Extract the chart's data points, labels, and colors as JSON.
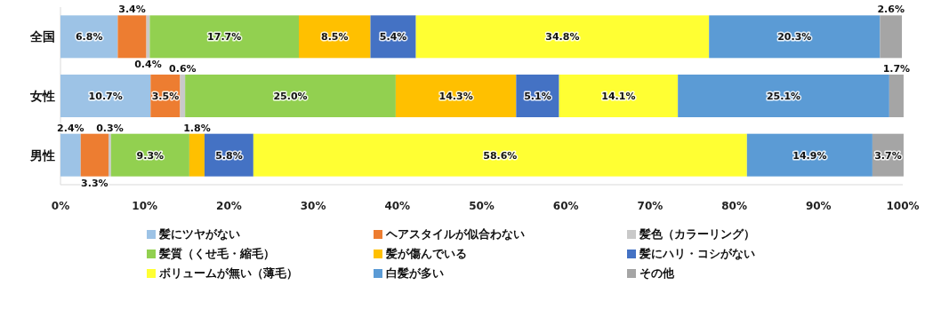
{
  "chart_data": {
    "type": "bar",
    "orientation": "horizontal",
    "stacked": true,
    "legend": "bottom",
    "categories": [
      "全国",
      "女性",
      "男性"
    ],
    "xlim": [
      0,
      100
    ],
    "xticks": [
      {
        "value": 0,
        "label": "0%"
      },
      {
        "value": 10,
        "label": "10%"
      },
      {
        "value": 20,
        "label": "20%"
      },
      {
        "value": 30,
        "label": "30%"
      },
      {
        "value": 40,
        "label": "40%"
      },
      {
        "value": 50,
        "label": "50%"
      },
      {
        "value": 60,
        "label": "60%"
      },
      {
        "value": 70,
        "label": "70%"
      },
      {
        "value": 80,
        "label": "80%"
      },
      {
        "value": 90,
        "label": "90%"
      },
      {
        "value": 100,
        "label": "100%"
      }
    ],
    "series": [
      {
        "name": "髪にツヤがない",
        "color": "#9dc3e6",
        "values": [
          6.8,
          10.7,
          2.4
        ],
        "value_labels": [
          "6.8%",
          "10.7%",
          "2.4%"
        ]
      },
      {
        "name": "ヘアスタイルが似合わない",
        "color": "#ed7d31",
        "values": [
          3.4,
          3.5,
          3.3
        ],
        "value_labels": [
          "3.4%",
          "3.5%",
          "3.3%"
        ]
      },
      {
        "name": "髪色（カラーリング）",
        "color": "#c9c9c9",
        "values": [
          0.4,
          0.6,
          0.3
        ],
        "value_labels": [
          "0.4%",
          "0.6%",
          "0.3%"
        ]
      },
      {
        "name": "髪質（くせ毛・縮毛）",
        "color": "#92d050",
        "values": [
          17.7,
          25.0,
          9.3
        ],
        "value_labels": [
          "17.7%",
          "25.0%",
          "9.3%"
        ]
      },
      {
        "name": "髪が傷んでいる",
        "color": "#ffc000",
        "values": [
          8.5,
          14.3,
          1.8
        ],
        "value_labels": [
          "8.5%",
          "14.3%",
          "1.8%"
        ]
      },
      {
        "name": "髪にハリ・コシがない",
        "color": "#4472c4",
        "values": [
          5.4,
          5.1,
          5.8
        ],
        "value_labels": [
          "5.4%",
          "5.1%",
          "5.8%"
        ]
      },
      {
        "name": "ボリュームが無い（薄毛）",
        "color": "#ffff33",
        "values": [
          34.8,
          14.1,
          58.6
        ],
        "value_labels": [
          "34.8%",
          "14.1%",
          "58.6%"
        ]
      },
      {
        "name": "白髪が多い",
        "color": "#5b9bd5",
        "values": [
          20.3,
          25.1,
          14.9
        ],
        "value_labels": [
          "20.3%",
          "25.1%",
          "14.9%"
        ]
      },
      {
        "name": "その他",
        "color": "#a5a5a5",
        "values": [
          2.6,
          1.7,
          3.7
        ],
        "value_labels": [
          "2.6%",
          "1.7%",
          "3.7%"
        ]
      }
    ]
  }
}
